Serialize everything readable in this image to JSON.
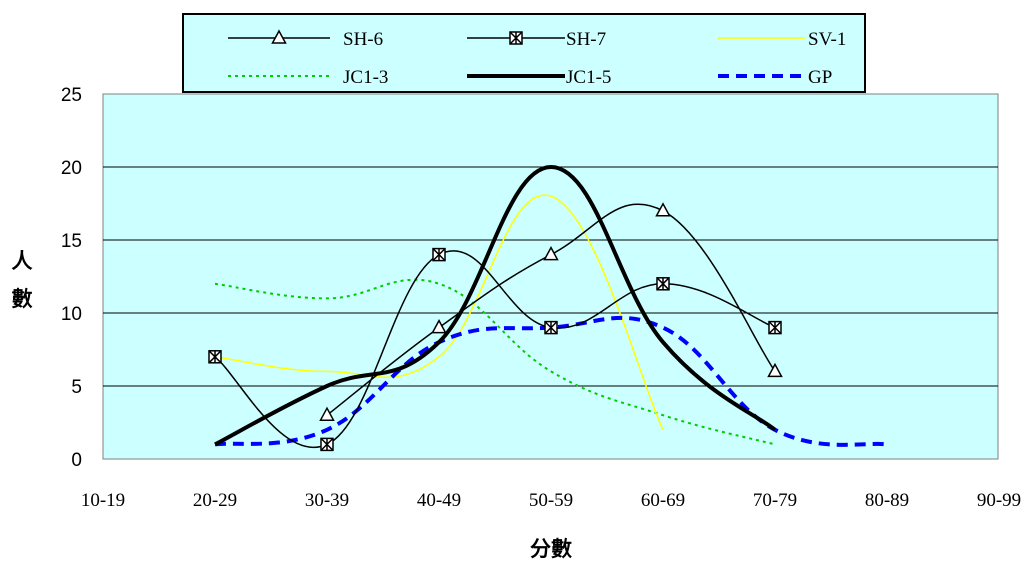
{
  "chart_data": {
    "type": "line",
    "title": "",
    "xlabel": "分數",
    "ylabel": "人數",
    "ylabel_chars": [
      "人",
      "數"
    ],
    "categories": [
      "10-19",
      "20-29",
      "30-39",
      "40-49",
      "50-59",
      "60-69",
      "70-79",
      "80-89",
      "90-99"
    ],
    "ylim": [
      0,
      25
    ],
    "yticks": [
      "0",
      "5",
      "10",
      "15",
      "20",
      "25"
    ],
    "grid": "horizontal",
    "plot_background": "#CCFFFF",
    "legend_position": "top",
    "series": [
      {
        "name": "SH-6",
        "color": "#000000",
        "style": "solid-thin",
        "marker": "triangle",
        "points": [
          [
            "30-39",
            3
          ],
          [
            "40-49",
            9
          ],
          [
            "50-59",
            14
          ],
          [
            "60-69",
            17
          ],
          [
            "70-79",
            6
          ]
        ]
      },
      {
        "name": "SH-7",
        "color": "#000000",
        "style": "solid-thin",
        "marker": "box-x",
        "points": [
          [
            "20-29",
            7
          ],
          [
            "30-39",
            1
          ],
          [
            "40-49",
            14
          ],
          [
            "50-59",
            9
          ],
          [
            "60-69",
            12
          ],
          [
            "70-79",
            9
          ]
        ]
      },
      {
        "name": "SV-1",
        "color": "#FFFF00",
        "style": "solid-thin",
        "marker": "none",
        "points": [
          [
            "20-29",
            7
          ],
          [
            "30-39",
            6
          ],
          [
            "40-49",
            7
          ],
          [
            "50-59",
            18
          ],
          [
            "60-69",
            2
          ]
        ]
      },
      {
        "name": "JC1-3",
        "color": "#00CC00",
        "style": "dotted",
        "marker": "none",
        "points": [
          [
            "20-29",
            12
          ],
          [
            "30-39",
            11
          ],
          [
            "40-49",
            12
          ],
          [
            "50-59",
            6
          ],
          [
            "60-69",
            3
          ],
          [
            "70-79",
            1
          ]
        ]
      },
      {
        "name": "JC1-5",
        "color": "#000000",
        "style": "solid-thick",
        "marker": "none",
        "points": [
          [
            "20-29",
            1
          ],
          [
            "30-39",
            5
          ],
          [
            "40-49",
            8
          ],
          [
            "50-59",
            20
          ],
          [
            "60-69",
            8
          ],
          [
            "70-79",
            2
          ]
        ]
      },
      {
        "name": "GP",
        "color": "#0000FF",
        "style": "dashed-thick",
        "marker": "none",
        "points": [
          [
            "20-29",
            1
          ],
          [
            "30-39",
            2
          ],
          [
            "40-49",
            8
          ],
          [
            "50-59",
            9
          ],
          [
            "60-69",
            9
          ],
          [
            "70-79",
            2
          ],
          [
            "80-89",
            1
          ]
        ]
      }
    ]
  }
}
